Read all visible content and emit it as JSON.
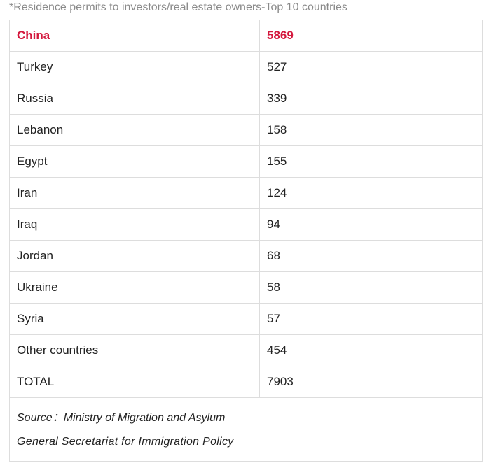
{
  "caption": "*Residence permits to investors/real estate owners-Top 10 countries",
  "table": {
    "rows": [
      {
        "country": "China",
        "value": "5869"
      },
      {
        "country": "Turkey",
        "value": "527"
      },
      {
        "country": "Russia",
        "value": "339"
      },
      {
        "country": "Lebanon",
        "value": "158"
      },
      {
        "country": "Egypt",
        "value": "155"
      },
      {
        "country": "Iran",
        "value": "124"
      },
      {
        "country": "Iraq",
        "value": "94"
      },
      {
        "country": "Jordan",
        "value": "68"
      },
      {
        "country": "Ukraine",
        "value": "58"
      },
      {
        "country": "Syria",
        "value": "57"
      },
      {
        "country": "Other countries",
        "value": "454"
      },
      {
        "country": "TOTAL",
        "value": "7903"
      }
    ],
    "highlight_color": "#d4183d"
  },
  "source": {
    "line1": "Source：Ministry of Migration and Asylum",
    "line2": "General Secretariat for Immigration Policy"
  }
}
